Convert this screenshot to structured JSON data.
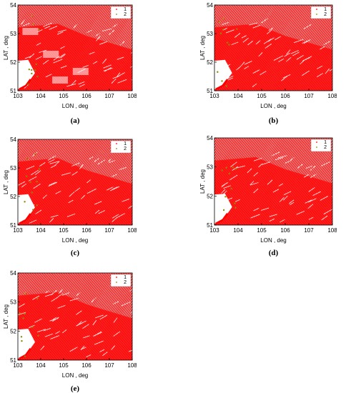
{
  "chart_data": [
    {
      "caption": "(a)",
      "type": "scatter",
      "xlabel": "LON , deg",
      "ylabel": "LAT , deg",
      "xlim": [
        103,
        108
      ],
      "ylim": [
        51,
        54
      ],
      "xticks": [
        "103",
        "104",
        "105",
        "106",
        "107",
        "108"
      ],
      "yticks": [
        "51",
        "52",
        "53",
        "54"
      ],
      "legend": {
        "placement": "top-right",
        "entries": [
          "1",
          "2"
        ]
      },
      "series": [
        {
          "name": "1",
          "color": "#ff0000",
          "values": "dense coverage of the region"
        },
        {
          "name": "2",
          "color": "#8b8b00",
          "values": "sparse points, lower-left"
        }
      ],
      "annotations": [
        "faded patches along the left and centre of the map"
      ]
    },
    {
      "caption": "(b)",
      "type": "scatter",
      "xlabel": "LON , deg",
      "ylabel": "LAT , deg",
      "xlim": [
        103,
        108
      ],
      "ylim": [
        51,
        54
      ],
      "xticks": [
        "103",
        "104",
        "105",
        "106",
        "107",
        "108"
      ],
      "yticks": [
        "51",
        "52",
        "53",
        "54"
      ],
      "legend": {
        "placement": "top-right",
        "entries": [
          "1",
          "2"
        ]
      },
      "series": [
        {
          "name": "1",
          "color": "#ff0000"
        },
        {
          "name": "2",
          "color": "#8b8b00"
        }
      ]
    },
    {
      "caption": "(c)",
      "type": "scatter",
      "xlabel": "LON , deg",
      "ylabel": "LAT , deg",
      "xlim": [
        103,
        108
      ],
      "ylim": [
        51,
        54
      ],
      "xticks": [
        "103",
        "104",
        "105",
        "106",
        "107",
        "108"
      ],
      "yticks": [
        "51",
        "52",
        "53",
        "54"
      ],
      "legend": {
        "placement": "top-right",
        "entries": [
          "1",
          "2"
        ]
      },
      "series": [
        {
          "name": "1",
          "color": "#ff0000"
        },
        {
          "name": "2",
          "color": "#8b8b00"
        }
      ]
    },
    {
      "caption": "(d)",
      "type": "scatter",
      "xlabel": "LON , deg",
      "ylabel": "LAT , deg",
      "xlim": [
        103,
        108
      ],
      "ylim": [
        51,
        54
      ],
      "xticks": [
        "103",
        "104",
        "105",
        "106",
        "107",
        "108"
      ],
      "yticks": [
        "51",
        "52",
        "53",
        "54"
      ],
      "legend": {
        "placement": "top-right",
        "entries": [
          "1",
          "2"
        ]
      },
      "series": [
        {
          "name": "1",
          "color": "#ff0000"
        },
        {
          "name": "2",
          "color": "#8b8b00"
        }
      ]
    },
    {
      "caption": "(e)",
      "type": "scatter",
      "xlabel": "LON , deg",
      "ylabel": "LAT , deg",
      "xlim": [
        103,
        108
      ],
      "ylim": [
        51,
        54
      ],
      "xticks": [
        "103",
        "104",
        "105",
        "106",
        "107",
        "108"
      ],
      "yticks": [
        "51",
        "52",
        "53",
        "54"
      ],
      "legend": {
        "placement": "top-right",
        "entries": [
          "1",
          "2"
        ]
      },
      "series": [
        {
          "name": "1",
          "color": "#ff0000"
        },
        {
          "name": "2",
          "color": "#8b8b00"
        }
      ]
    }
  ]
}
